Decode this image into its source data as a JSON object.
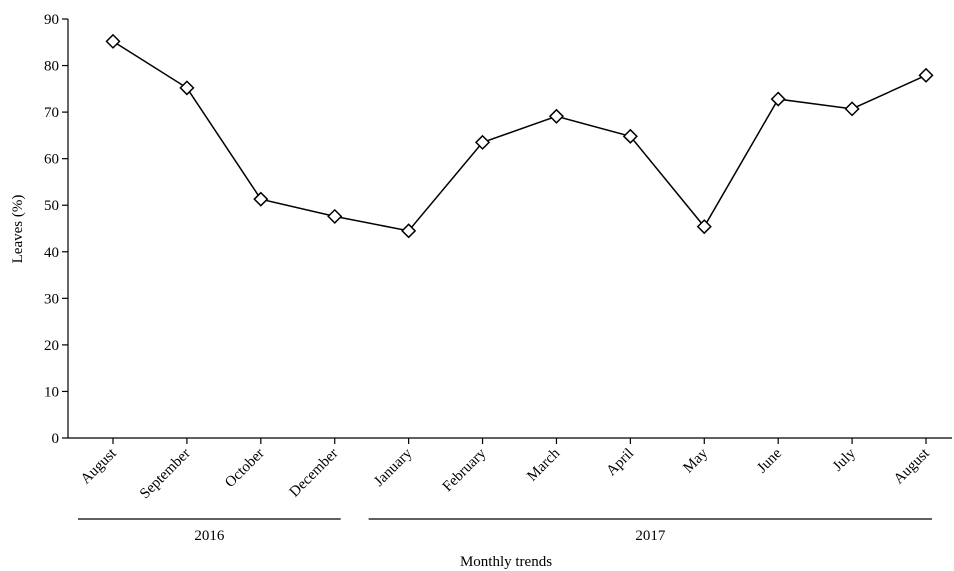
{
  "chart_data": {
    "type": "line",
    "categories": [
      "August",
      "September",
      "October",
      "December",
      "January",
      "February",
      "March",
      "April",
      "May",
      "June",
      "July",
      "August"
    ],
    "values": [
      85.2,
      75.2,
      51.3,
      47.6,
      44.5,
      63.5,
      69.1,
      64.8,
      45.4,
      72.8,
      70.7,
      77.9
    ],
    "xlabel": "Monthly trends",
    "ylabel": "Leaves (%)",
    "ylim": [
      0,
      90
    ],
    "yticks": [
      0,
      10,
      20,
      30,
      40,
      50,
      60,
      70,
      80,
      90
    ],
    "marker": "open-diamond",
    "grid": false,
    "year_groups": [
      {
        "label": "2016",
        "from": 0,
        "to": 3
      },
      {
        "label": "2017",
        "from": 4,
        "to": 11
      }
    ]
  }
}
